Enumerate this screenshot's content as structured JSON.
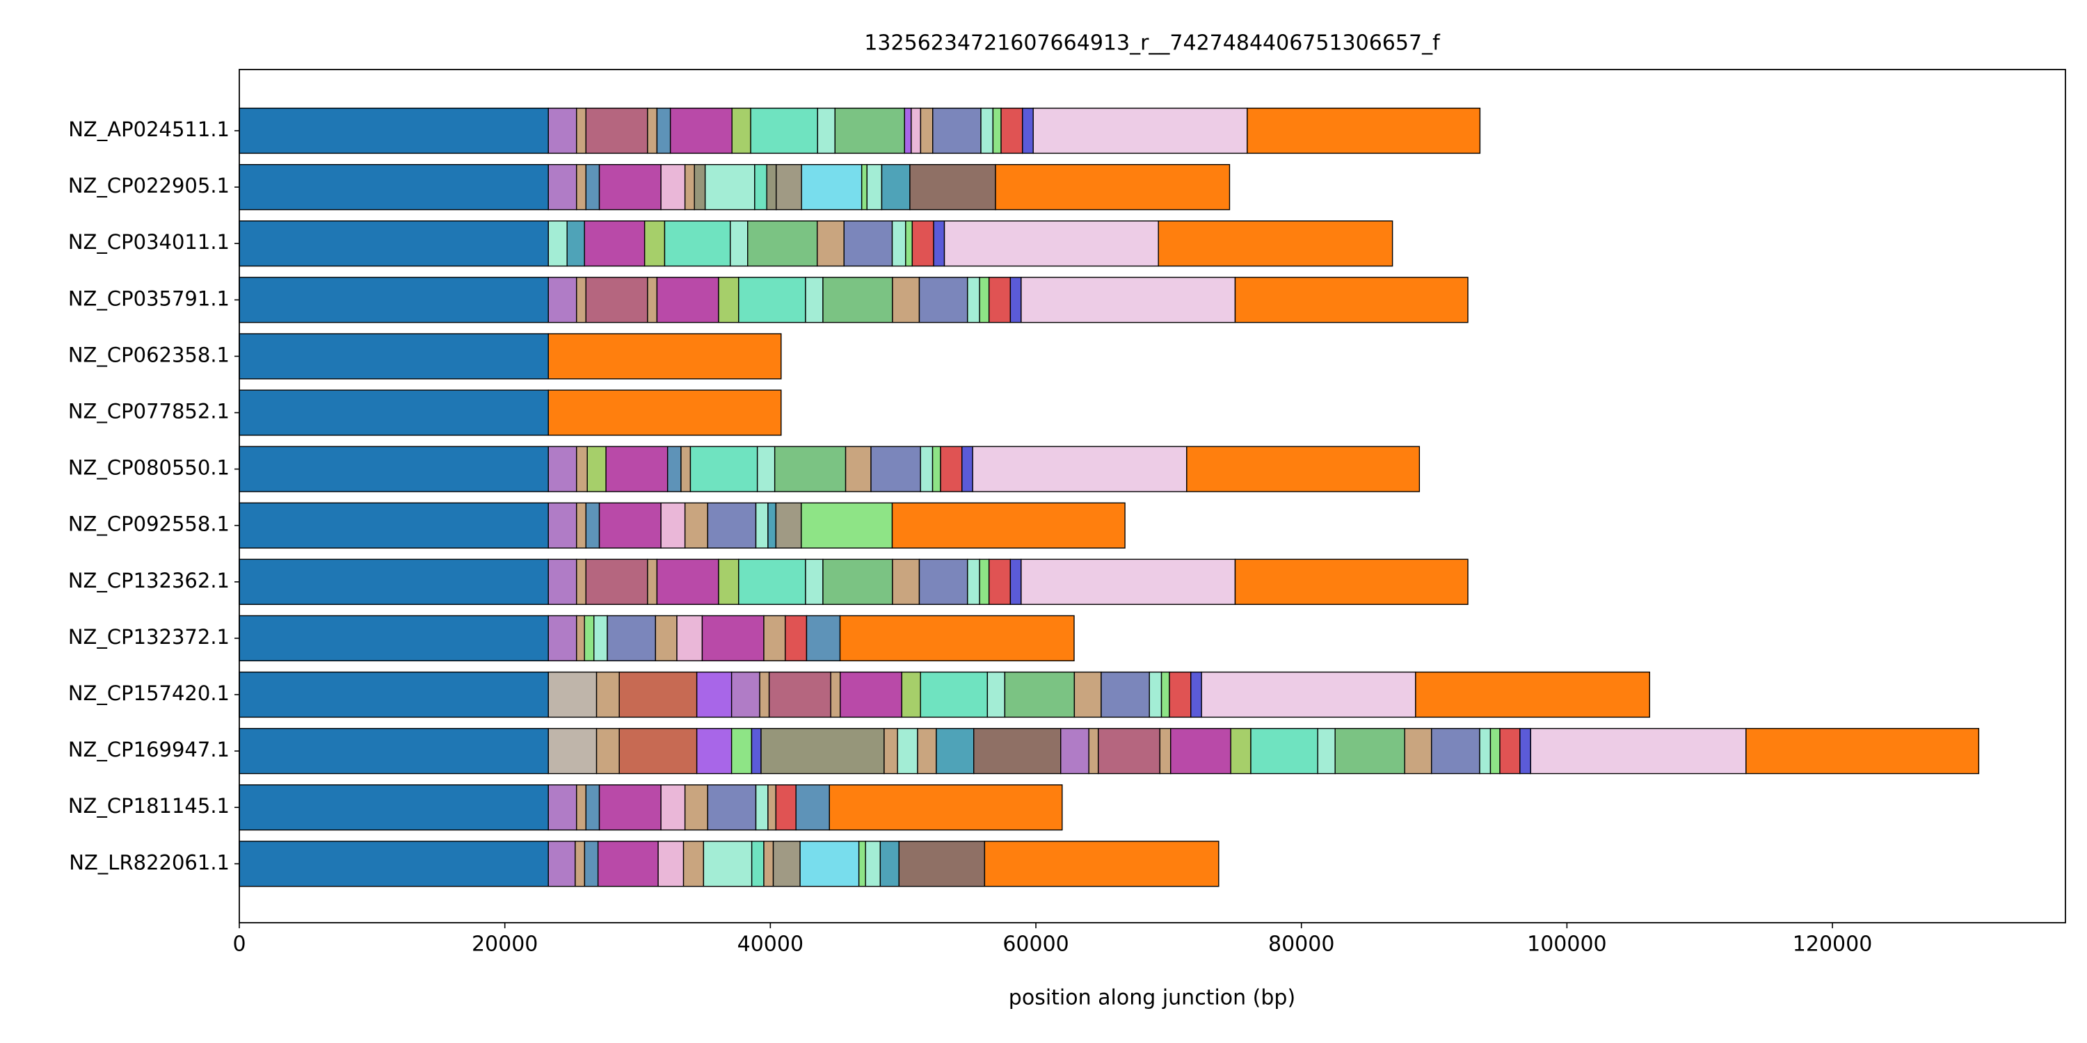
{
  "chart_data": {
    "type": "stacked-barh",
    "title": "13256234721607664913_r__7427484406751306657_f",
    "x_label": "position along junction (bp)",
    "xlim": [
      0,
      137550
    ],
    "xticks": [
      0,
      20000,
      40000,
      60000,
      80000,
      100000,
      120000
    ],
    "categories": [
      "NZ_AP024511.1",
      "NZ_CP022905.1",
      "NZ_CP034011.1",
      "NZ_CP035791.1",
      "NZ_CP062358.1",
      "NZ_CP077852.1",
      "NZ_CP080550.1",
      "NZ_CP092558.1",
      "NZ_CP132362.1",
      "NZ_CP132372.1",
      "NZ_CP157420.1",
      "NZ_CP169947.1",
      "NZ_CP181145.1",
      "NZ_LR822061.1"
    ],
    "stacks": [
      {
        "values": [
          23280,
          2120,
          710,
          4640,
          710,
          1010,
          4640,
          1410,
          5040,
          1310,
          5240,
          500,
          710,
          910,
          3630,
          910,
          610,
          1610,
          810,
          16120,
          17530
        ],
        "colors": [
          "#1f77b4",
          "#b07cc6",
          "#c9a57f",
          "#b5667f",
          "#c9a57f",
          "#5e93b8",
          "#b94aa8",
          "#a6cf6a",
          "#6fe3c0",
          "#a3edd5",
          "#7bc383",
          "#a866e8",
          "#eab7d8",
          "#c9a57f",
          "#7b86bb",
          "#a3edd5",
          "#8ee486",
          "#e05353",
          "#5b5bd8",
          "#edcce6",
          "#ff7f0e"
        ]
      },
      {
        "values": [
          23280,
          2120,
          710,
          1010,
          4640,
          1810,
          710,
          810,
          3730,
          910,
          710,
          1910,
          4530,
          400,
          1110,
          2120,
          6450,
          17630
        ],
        "colors": [
          "#1f77b4",
          "#b07cc6",
          "#c9a57f",
          "#5e93b8",
          "#b94aa8",
          "#eab7d8",
          "#c9a57f",
          "#96967a",
          "#a3edd5",
          "#6fe3c0",
          "#96967a",
          "#a09a84",
          "#78dded",
          "#8ee486",
          "#a3edd5",
          "#4fa3b8",
          "#8f7065",
          "#ff7f0e"
        ]
      },
      {
        "values": [
          23280,
          1410,
          1310,
          4530,
          1510,
          4940,
          1310,
          5240,
          2020,
          3630,
          1010,
          500,
          1610,
          810,
          16120,
          17630
        ],
        "colors": [
          "#1f77b4",
          "#a3edd5",
          "#4fa3b8",
          "#b94aa8",
          "#a6cf6a",
          "#6fe3c0",
          "#a3edd5",
          "#7bc383",
          "#c9a57f",
          "#7b86bb",
          "#a3edd5",
          "#8ee486",
          "#e05353",
          "#5b5bd8",
          "#edcce6",
          "#ff7f0e"
        ]
      },
      {
        "values": [
          23280,
          2120,
          710,
          4640,
          710,
          4640,
          1510,
          5040,
          1310,
          5240,
          2020,
          3630,
          910,
          710,
          1610,
          810,
          16120,
          17530
        ],
        "colors": [
          "#1f77b4",
          "#b07cc6",
          "#c9a57f",
          "#b5667f",
          "#c9a57f",
          "#b94aa8",
          "#a6cf6a",
          "#6fe3c0",
          "#a3edd5",
          "#7bc383",
          "#c9a57f",
          "#7b86bb",
          "#a3edd5",
          "#8ee486",
          "#e05353",
          "#5b5bd8",
          "#edcce6",
          "#ff7f0e"
        ]
      },
      {
        "values": [
          23280,
          17530
        ],
        "colors": [
          "#1f77b4",
          "#ff7f0e"
        ]
      },
      {
        "values": [
          23280,
          17530
        ],
        "colors": [
          "#1f77b4",
          "#ff7f0e"
        ]
      },
      {
        "values": [
          23280,
          2120,
          810,
          1410,
          4640,
          1010,
          710,
          5040,
          1310,
          5340,
          1910,
          3730,
          910,
          600,
          1610,
          810,
          16120,
          17530
        ],
        "colors": [
          "#1f77b4",
          "#b07cc6",
          "#c9a57f",
          "#a6cf6a",
          "#b94aa8",
          "#5e93b8",
          "#c9a57f",
          "#6fe3c0",
          "#a3edd5",
          "#7bc383",
          "#c9a57f",
          "#7b86bb",
          "#a3edd5",
          "#8ee486",
          "#e05353",
          "#5b5bd8",
          "#edcce6",
          "#ff7f0e"
        ]
      },
      {
        "values": [
          23280,
          2120,
          710,
          1010,
          4640,
          1810,
          1710,
          3630,
          910,
          600,
          1910,
          6850,
          17530
        ],
        "colors": [
          "#1f77b4",
          "#b07cc6",
          "#c9a57f",
          "#5e93b8",
          "#b94aa8",
          "#eab7d8",
          "#c9a57f",
          "#7b86bb",
          "#a3edd5",
          "#4fa3b8",
          "#a09a84",
          "#8ee486",
          "#ff7f0e"
        ]
      },
      {
        "values": [
          23280,
          2120,
          710,
          4640,
          710,
          4640,
          1510,
          5040,
          1310,
          5240,
          2020,
          3630,
          910,
          710,
          1610,
          810,
          16120,
          17530
        ],
        "colors": [
          "#1f77b4",
          "#b07cc6",
          "#c9a57f",
          "#b5667f",
          "#c9a57f",
          "#b94aa8",
          "#a6cf6a",
          "#6fe3c0",
          "#a3edd5",
          "#7bc383",
          "#c9a57f",
          "#7b86bb",
          "#a3edd5",
          "#8ee486",
          "#e05353",
          "#5b5bd8",
          "#edcce6",
          "#ff7f0e"
        ]
      },
      {
        "values": [
          23280,
          2120,
          600,
          710,
          1010,
          3630,
          1610,
          1910,
          4640,
          1610,
          1610,
          2520,
          17630
        ],
        "colors": [
          "#1f77b4",
          "#b07cc6",
          "#c9a57f",
          "#8ee486",
          "#a3edd5",
          "#7b86bb",
          "#c9a57f",
          "#eab7d8",
          "#b94aa8",
          "#c9a57f",
          "#e05353",
          "#5e93b8",
          "#ff7f0e"
        ]
      },
      {
        "values": [
          23280,
          3630,
          1710,
          5840,
          2620,
          2120,
          710,
          4640,
          710,
          4640,
          1410,
          5040,
          1310,
          5240,
          2020,
          3630,
          910,
          600,
          1610,
          810,
          16120,
          17630
        ],
        "colors": [
          "#1f77b4",
          "#bfb5aa",
          "#c9a57f",
          "#c76a53",
          "#a866e8",
          "#b07cc6",
          "#c9a57f",
          "#b5667f",
          "#c9a57f",
          "#b94aa8",
          "#a6cf6a",
          "#6fe3c0",
          "#a3edd5",
          "#7bc383",
          "#c9a57f",
          "#7b86bb",
          "#a3edd5",
          "#8ee486",
          "#e05353",
          "#5b5bd8",
          "#edcce6",
          "#ff7f0e"
        ]
      },
      {
        "values": [
          23280,
          3630,
          1710,
          5840,
          2620,
          1510,
          710,
          9270,
          1010,
          1510,
          1410,
          2820,
          6550,
          2120,
          710,
          4640,
          810,
          4530,
          1510,
          5040,
          1310,
          5240,
          2020,
          3630,
          810,
          710,
          1510,
          810,
          16220,
          17530
        ],
        "colors": [
          "#1f77b4",
          "#bfb5aa",
          "#c9a57f",
          "#c76a53",
          "#a866e8",
          "#8ee486",
          "#5b5bd8",
          "#96967a",
          "#c9a57f",
          "#a3edd5",
          "#c9a57f",
          "#4fa3b8",
          "#8f7065",
          "#b07cc6",
          "#c9a57f",
          "#b5667f",
          "#c9a57f",
          "#b94aa8",
          "#a6cf6a",
          "#6fe3c0",
          "#a3edd5",
          "#7bc383",
          "#c9a57f",
          "#7b86bb",
          "#a3edd5",
          "#8ee486",
          "#e05353",
          "#5b5bd8",
          "#edcce6",
          "#ff7f0e"
        ]
      },
      {
        "values": [
          23280,
          2120,
          710,
          1010,
          4640,
          1810,
          1710,
          3630,
          910,
          600,
          1510,
          2520,
          17530
        ],
        "colors": [
          "#1f77b4",
          "#b07cc6",
          "#c9a57f",
          "#5e93b8",
          "#b94aa8",
          "#eab7d8",
          "#c9a57f",
          "#7b86bb",
          "#a3edd5",
          "#c9a57f",
          "#e05353",
          "#5e93b8",
          "#ff7f0e"
        ]
      },
      {
        "values": [
          23280,
          2020,
          710,
          1010,
          4530,
          1910,
          1510,
          3630,
          910,
          710,
          2020,
          4430,
          500,
          1110,
          1410,
          6450,
          17630
        ],
        "colors": [
          "#1f77b4",
          "#b07cc6",
          "#c9a57f",
          "#5e93b8",
          "#b94aa8",
          "#eab7d8",
          "#c9a57f",
          "#a3edd5",
          "#6fe3c0",
          "#c9a57f",
          "#a09a84",
          "#78dded",
          "#8ee486",
          "#a3edd5",
          "#4fa3b8",
          "#8f7065",
          "#ff7f0e"
        ]
      }
    ]
  }
}
